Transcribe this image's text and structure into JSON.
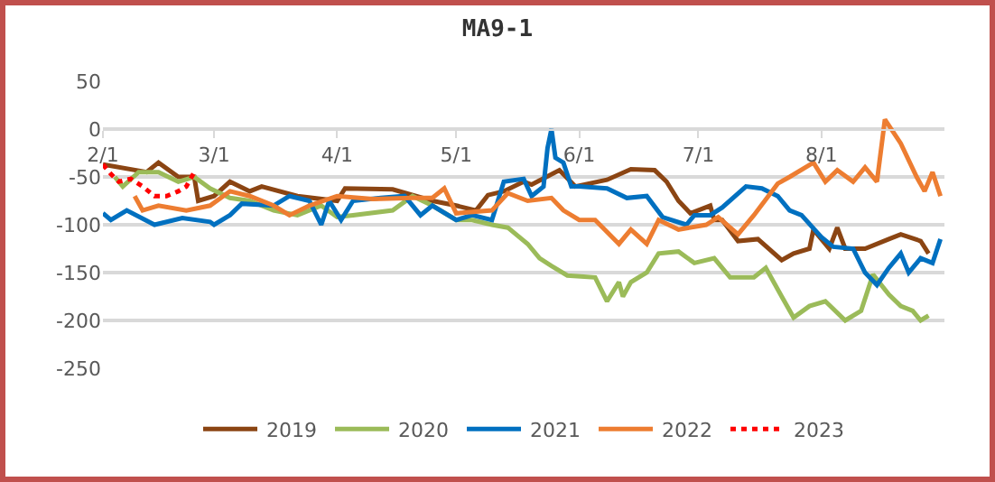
{
  "chart_data": {
    "type": "line",
    "title": "MA9-1",
    "xlim": [
      "--02-01",
      "--09-01"
    ],
    "xticks": [
      {
        "value": "--02-01",
        "label": "2/1"
      },
      {
        "value": "--03-01",
        "label": "3/1"
      },
      {
        "value": "--04-01",
        "label": "4/1"
      },
      {
        "value": "--05-01",
        "label": "5/1"
      },
      {
        "value": "--06-01",
        "label": "6/1"
      },
      {
        "value": "--07-01",
        "label": "7/1"
      },
      {
        "value": "--08-01",
        "label": "8/1"
      }
    ],
    "ylim": [
      -250,
      50
    ],
    "yticks": [
      -250,
      -200,
      -150,
      -100,
      -50,
      0,
      50
    ],
    "grid": "y",
    "legend": "bottom",
    "marker": "none",
    "line_style": "solid",
    "series": [
      {
        "name": "2019",
        "color": "#8b4513",
        "x": [
          "--02-01",
          "--02-12",
          "--02-15",
          "--02-20",
          "--02-24",
          "--02-25",
          "--03-01",
          "--03-05",
          "--03-10",
          "--03-13",
          "--03-22",
          "--04-01",
          "--04-03",
          "--04-15",
          "--04-25",
          "--05-01",
          "--05-06",
          "--05-09",
          "--05-13",
          "--05-18",
          "--05-20",
          "--05-27",
          "--05-31",
          "--06-08",
          "--06-14",
          "--06-20",
          "--06-23",
          "--06-26",
          "--06-29",
          "--07-04",
          "--07-05",
          "--07-07",
          "--07-11",
          "--07-16",
          "--07-22",
          "--07-25",
          "--07-29",
          "--07-30",
          "--08-03",
          "--08-05",
          "--08-07",
          "--08-12",
          "--08-18",
          "--08-21",
          "--08-26",
          "--08-28"
        ],
        "values": [
          -37,
          -45,
          -35,
          -50,
          -50,
          -75,
          -70,
          -55,
          -65,
          -60,
          -70,
          -75,
          -62,
          -63,
          -75,
          -80,
          -85,
          -69,
          -65,
          -55,
          -58,
          -43,
          -60,
          -53,
          -42,
          -43,
          -55,
          -75,
          -88,
          -80,
          -95,
          -95,
          -117,
          -115,
          -137,
          -130,
          -125,
          -105,
          -125,
          -103,
          -125,
          -125,
          -115,
          -110,
          -117,
          -130
        ]
      },
      {
        "name": "2020",
        "color": "#9bbb59",
        "x": [
          "--02-04",
          "--02-06",
          "--02-10",
          "--02-15",
          "--02-20",
          "--02-24",
          "--02-28",
          "--03-05",
          "--03-10",
          "--03-16",
          "--03-22",
          "--03-28",
          "--04-01",
          "--04-05",
          "--04-15",
          "--04-20",
          "--04-25",
          "--05-01",
          "--05-05",
          "--05-10",
          "--05-14",
          "--05-19",
          "--05-22",
          "--05-25",
          "--05-29",
          "--06-05",
          "--06-08",
          "--06-11",
          "--06-12",
          "--06-14",
          "--06-18",
          "--06-21",
          "--06-26",
          "--06-30",
          "--07-05",
          "--07-09",
          "--07-15",
          "--07-18",
          "--07-22",
          "--07-25",
          "--07-29",
          "--08-02",
          "--08-07",
          "--08-11",
          "--08-14",
          "--08-18",
          "--08-21",
          "--08-24",
          "--08-26",
          "--08-28"
        ],
        "values": [
          -50,
          -60,
          -45,
          -45,
          -55,
          -50,
          -62,
          -72,
          -75,
          -85,
          -90,
          -80,
          -92,
          -90,
          -85,
          -70,
          -80,
          -95,
          -95,
          -100,
          -103,
          -120,
          -135,
          -143,
          -153,
          -155,
          -180,
          -160,
          -175,
          -160,
          -150,
          -130,
          -128,
          -140,
          -135,
          -155,
          -155,
          -145,
          -175,
          -197,
          -185,
          -180,
          -200,
          -190,
          -152,
          -173,
          -185,
          -190,
          -200,
          -195
        ]
      },
      {
        "name": "2021",
        "color": "#0070c0",
        "x": [
          "--02-01",
          "--02-03",
          "--02-07",
          "--02-14",
          "--02-21",
          "--02-28",
          "--03-01",
          "--03-05",
          "--03-08",
          "--03-16",
          "--03-20",
          "--03-25",
          "--03-28",
          "--03-30",
          "--04-02",
          "--04-05",
          "--04-12",
          "--04-18",
          "--04-22",
          "--04-25",
          "--05-01",
          "--05-05",
          "--05-10",
          "--05-13",
          "--05-18",
          "--05-20",
          "--05-23",
          "--05-24",
          "--05-25",
          "--05-26",
          "--05-28",
          "--05-30",
          "--06-01",
          "--06-08",
          "--06-13",
          "--06-18",
          "--06-22",
          "--06-28",
          "--06-30",
          "--07-04",
          "--07-07",
          "--07-13",
          "--07-17",
          "--07-21",
          "--07-24",
          "--07-27",
          "--08-01",
          "--08-04",
          "--08-09",
          "--08-12",
          "--08-15",
          "--08-18",
          "--08-21",
          "--08-23",
          "--08-26",
          "--08-29",
          "--08-31"
        ],
        "values": [
          -88,
          -95,
          -85,
          -100,
          -93,
          -97,
          -100,
          -90,
          -78,
          -80,
          -70,
          -75,
          -100,
          -75,
          -95,
          -75,
          -72,
          -70,
          -90,
          -80,
          -95,
          -90,
          -95,
          -55,
          -52,
          -70,
          -60,
          -20,
          0,
          -30,
          -35,
          -60,
          -60,
          -62,
          -72,
          -70,
          -92,
          -100,
          -90,
          -90,
          -82,
          -60,
          -62,
          -70,
          -85,
          -90,
          -113,
          -123,
          -125,
          -150,
          -163,
          -145,
          -130,
          -150,
          -135,
          -140,
          -115
        ]
      },
      {
        "name": "2022",
        "color": "#ed7d31",
        "x": [
          "--02-09",
          "--02-11",
          "--02-15",
          "--02-22",
          "--02-28",
          "--03-05",
          "--03-10",
          "--03-16",
          "--03-20",
          "--03-25",
          "--04-01",
          "--04-10",
          "--04-20",
          "--04-25",
          "--04-28",
          "--05-01",
          "--05-10",
          "--05-14",
          "--05-19",
          "--05-25",
          "--05-28",
          "--06-01",
          "--06-05",
          "--06-11",
          "--06-14",
          "--06-18",
          "--06-21",
          "--06-26",
          "--07-03",
          "--07-06",
          "--07-11",
          "--07-15",
          "--07-21",
          "--07-24",
          "--07-30",
          "--08-02",
          "--08-05",
          "--08-09",
          "--08-12",
          "--08-15",
          "--08-17",
          "--08-21",
          "--08-25",
          "--08-27",
          "--08-29",
          "--08-31"
        ],
        "values": [
          -70,
          -85,
          -80,
          -85,
          -80,
          -65,
          -70,
          -80,
          -90,
          -80,
          -70,
          -73,
          -72,
          -72,
          -62,
          -88,
          -85,
          -67,
          -75,
          -72,
          -85,
          -95,
          -95,
          -120,
          -105,
          -120,
          -95,
          -105,
          -100,
          -92,
          -110,
          -90,
          -57,
          -50,
          -35,
          -55,
          -43,
          -55,
          -40,
          -55,
          10,
          -15,
          -50,
          -65,
          -45,
          -70
        ]
      },
      {
        "name": "2023",
        "color": "#ff0000",
        "line_style": "dotted",
        "x": [
          "--02-01",
          "--02-03",
          "--02-05",
          "--02-08",
          "--02-11",
          "--02-14",
          "--02-17",
          "--02-20",
          "--02-22",
          "--02-24"
        ],
        "values": [
          -37,
          -47,
          -55,
          -52,
          -60,
          -70,
          -70,
          -65,
          -60,
          -45
        ]
      }
    ]
  }
}
